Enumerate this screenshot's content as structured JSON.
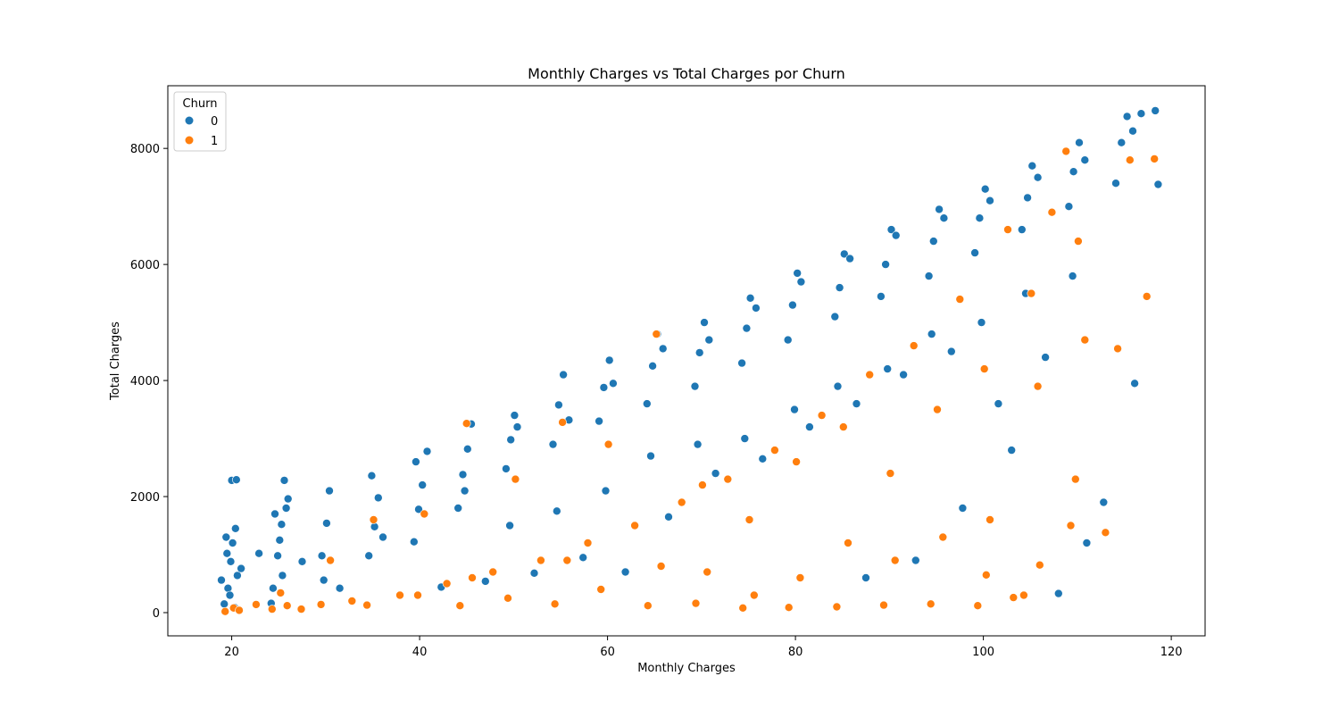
{
  "chart_data": {
    "type": "scatter",
    "title": "Monthly Charges vs Total Charges por Churn",
    "xlabel": "Monthly Charges",
    "ylabel": "Total Charges",
    "xlim": [
      13.2,
      123.6
    ],
    "ylim": [
      -400,
      9080
    ],
    "xticks": [
      20,
      40,
      60,
      80,
      100,
      120
    ],
    "yticks": [
      0,
      2000,
      4000,
      6000,
      8000
    ],
    "grid": false,
    "legend": {
      "title": "Churn",
      "placement": "top-left"
    },
    "series": [
      {
        "name": "0",
        "color": "#1f77b4",
        "points": [
          [
            19.2,
            150
          ],
          [
            19.6,
            420
          ],
          [
            19.9,
            880
          ],
          [
            20.1,
            1200
          ],
          [
            20.4,
            1450
          ],
          [
            19.5,
            1020
          ],
          [
            20.6,
            640
          ],
          [
            19.8,
            300
          ],
          [
            20.3,
            90
          ],
          [
            19.4,
            1300
          ],
          [
            20.0,
            2280
          ],
          [
            20.5,
            2290
          ],
          [
            18.9,
            560
          ],
          [
            21.0,
            760
          ],
          [
            24.4,
            420
          ],
          [
            24.9,
            980
          ],
          [
            25.3,
            1520
          ],
          [
            25.8,
            1800
          ],
          [
            24.6,
            1700
          ],
          [
            25.1,
            1250
          ],
          [
            25.6,
            2280
          ],
          [
            26.0,
            1960
          ],
          [
            24.2,
            160
          ],
          [
            25.4,
            640
          ],
          [
            29.6,
            980
          ],
          [
            30.1,
            1540
          ],
          [
            30.4,
            2100
          ],
          [
            29.8,
            560
          ],
          [
            34.6,
            980
          ],
          [
            35.2,
            1480
          ],
          [
            35.6,
            1980
          ],
          [
            34.9,
            2360
          ],
          [
            36.1,
            1300
          ],
          [
            39.4,
            1220
          ],
          [
            39.9,
            1780
          ],
          [
            40.3,
            2200
          ],
          [
            40.8,
            2780
          ],
          [
            39.6,
            2600
          ],
          [
            44.1,
            1800
          ],
          [
            44.6,
            2380
          ],
          [
            45.1,
            2820
          ],
          [
            45.5,
            3250
          ],
          [
            44.8,
            2100
          ],
          [
            49.2,
            2480
          ],
          [
            49.7,
            2980
          ],
          [
            50.1,
            3400
          ],
          [
            50.4,
            3200
          ],
          [
            49.6,
            1500
          ],
          [
            54.2,
            2900
          ],
          [
            54.8,
            3580
          ],
          [
            55.3,
            4100
          ],
          [
            55.9,
            3320
          ],
          [
            54.6,
            1750
          ],
          [
            59.1,
            3300
          ],
          [
            59.6,
            3880
          ],
          [
            60.2,
            4350
          ],
          [
            60.6,
            3950
          ],
          [
            59.8,
            2100
          ],
          [
            64.2,
            3600
          ],
          [
            64.8,
            4250
          ],
          [
            65.3,
            4800
          ],
          [
            65.9,
            4550
          ],
          [
            64.6,
            2700
          ],
          [
            69.3,
            3900
          ],
          [
            69.8,
            4480
          ],
          [
            70.3,
            5000
          ],
          [
            70.8,
            4700
          ],
          [
            69.6,
            2900
          ],
          [
            74.3,
            4300
          ],
          [
            74.8,
            4900
          ],
          [
            75.2,
            5420
          ],
          [
            75.8,
            5250
          ],
          [
            74.6,
            3000
          ],
          [
            79.2,
            4700
          ],
          [
            79.7,
            5300
          ],
          [
            80.2,
            5850
          ],
          [
            80.6,
            5700
          ],
          [
            79.9,
            3500
          ],
          [
            84.2,
            5100
          ],
          [
            84.7,
            5600
          ],
          [
            85.2,
            6180
          ],
          [
            85.8,
            6100
          ],
          [
            84.5,
            3900
          ],
          [
            89.1,
            5450
          ],
          [
            89.6,
            6000
          ],
          [
            90.2,
            6600
          ],
          [
            90.7,
            6500
          ],
          [
            89.8,
            4200
          ],
          [
            94.2,
            5800
          ],
          [
            94.7,
            6400
          ],
          [
            95.3,
            6950
          ],
          [
            95.8,
            6800
          ],
          [
            94.5,
            4800
          ],
          [
            99.1,
            6200
          ],
          [
            99.6,
            6800
          ],
          [
            100.2,
            7300
          ],
          [
            100.7,
            7100
          ],
          [
            99.8,
            5000
          ],
          [
            104.1,
            6600
          ],
          [
            104.7,
            7150
          ],
          [
            105.2,
            7700
          ],
          [
            105.8,
            7500
          ],
          [
            104.5,
            5500
          ],
          [
            109.1,
            7000
          ],
          [
            109.6,
            7600
          ],
          [
            110.2,
            8100
          ],
          [
            110.8,
            7800
          ],
          [
            109.5,
            5800
          ],
          [
            114.1,
            7400
          ],
          [
            114.7,
            8100
          ],
          [
            115.3,
            8550
          ],
          [
            115.9,
            8300
          ],
          [
            116.8,
            8600
          ],
          [
            118.3,
            8650
          ],
          [
            118.6,
            7380
          ],
          [
            116.1,
            3950
          ],
          [
            112.8,
            1900
          ],
          [
            108.0,
            330
          ],
          [
            111.0,
            1200
          ],
          [
            61.9,
            700
          ],
          [
            57.4,
            950
          ],
          [
            52.2,
            680
          ],
          [
            47.0,
            540
          ],
          [
            42.3,
            440
          ],
          [
            31.5,
            420
          ],
          [
            22.9,
            1020
          ],
          [
            27.5,
            880
          ],
          [
            66.5,
            1650
          ],
          [
            71.5,
            2400
          ],
          [
            76.5,
            2650
          ],
          [
            81.5,
            3200
          ],
          [
            86.5,
            3600
          ],
          [
            91.5,
            4100
          ],
          [
            96.6,
            4500
          ],
          [
            101.6,
            3600
          ],
          [
            106.6,
            4400
          ],
          [
            103.0,
            2800
          ],
          [
            97.8,
            1800
          ],
          [
            92.8,
            900
          ],
          [
            87.5,
            600
          ]
        ]
      },
      {
        "name": "1",
        "color": "#ff7f0e",
        "points": [
          [
            19.3,
            20
          ],
          [
            20.2,
            80
          ],
          [
            20.8,
            40
          ],
          [
            24.3,
            60
          ],
          [
            25.2,
            340
          ],
          [
            25.9,
            120
          ],
          [
            29.5,
            140
          ],
          [
            30.5,
            900
          ],
          [
            34.4,
            130
          ],
          [
            35.1,
            1600
          ],
          [
            39.8,
            300
          ],
          [
            40.5,
            1700
          ],
          [
            44.3,
            120
          ],
          [
            45.0,
            3260
          ],
          [
            45.6,
            600
          ],
          [
            49.4,
            250
          ],
          [
            50.2,
            2300
          ],
          [
            54.4,
            150
          ],
          [
            55.2,
            3280
          ],
          [
            55.7,
            900
          ],
          [
            59.3,
            400
          ],
          [
            60.1,
            2900
          ],
          [
            64.3,
            120
          ],
          [
            65.2,
            4800
          ],
          [
            65.7,
            800
          ],
          [
            69.4,
            160
          ],
          [
            70.1,
            2200
          ],
          [
            70.6,
            700
          ],
          [
            74.4,
            80
          ],
          [
            75.1,
            1600
          ],
          [
            75.6,
            300
          ],
          [
            79.3,
            90
          ],
          [
            80.1,
            2600
          ],
          [
            80.5,
            600
          ],
          [
            84.4,
            100
          ],
          [
            85.1,
            3200
          ],
          [
            85.6,
            1200
          ],
          [
            89.4,
            130
          ],
          [
            90.1,
            2400
          ],
          [
            90.6,
            900
          ],
          [
            94.4,
            150
          ],
          [
            95.1,
            3500
          ],
          [
            95.7,
            1300
          ],
          [
            99.4,
            120
          ],
          [
            100.1,
            4200
          ],
          [
            100.7,
            1600
          ],
          [
            104.3,
            300
          ],
          [
            105.1,
            5500
          ],
          [
            105.8,
            3900
          ],
          [
            109.3,
            1500
          ],
          [
            110.1,
            6400
          ],
          [
            110.8,
            4700
          ],
          [
            113.0,
            1380
          ],
          [
            114.3,
            4550
          ],
          [
            115.6,
            7800
          ],
          [
            117.4,
            5450
          ],
          [
            118.2,
            7820
          ],
          [
            108.8,
            7950
          ],
          [
            107.3,
            6900
          ],
          [
            102.6,
            6600
          ],
          [
            97.5,
            5400
          ],
          [
            92.6,
            4600
          ],
          [
            87.9,
            4100
          ],
          [
            82.8,
            3400
          ],
          [
            77.8,
            2800
          ],
          [
            72.8,
            2300
          ],
          [
            67.9,
            1900
          ],
          [
            62.9,
            1500
          ],
          [
            57.9,
            1200
          ],
          [
            52.9,
            900
          ],
          [
            47.8,
            700
          ],
          [
            42.9,
            500
          ],
          [
            37.9,
            300
          ],
          [
            32.8,
            200
          ],
          [
            27.4,
            60
          ],
          [
            22.6,
            140
          ],
          [
            100.3,
            650
          ],
          [
            103.2,
            260
          ],
          [
            106.0,
            820
          ],
          [
            109.8,
            2300
          ]
        ]
      }
    ]
  }
}
